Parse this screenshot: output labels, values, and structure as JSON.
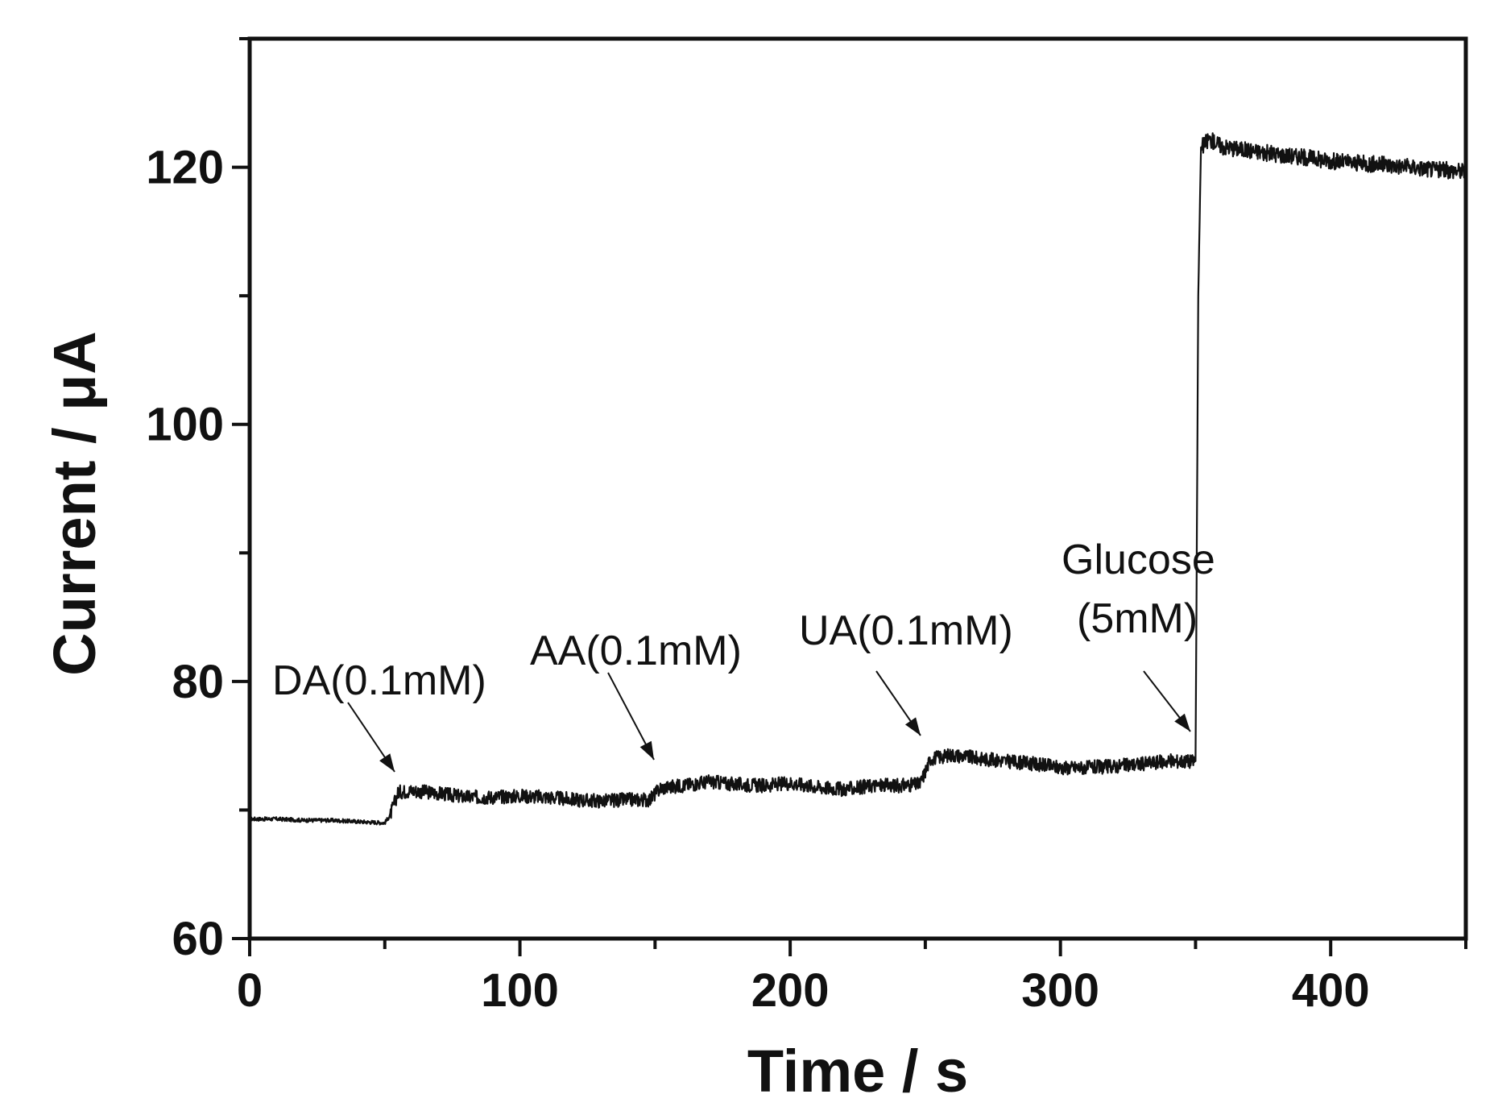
{
  "chart_data": {
    "type": "line",
    "xlabel": "Time / s",
    "ylabel": "Current / μA",
    "xlim": [
      0,
      450
    ],
    "ylim": [
      60,
      130
    ],
    "xticks": [
      0,
      100,
      200,
      300,
      400
    ],
    "yticks": [
      60,
      80,
      100,
      120
    ],
    "grid": false,
    "legend": "none",
    "line_color": "#111111",
    "series": [
      {
        "x": [
          0,
          10,
          20,
          30,
          40,
          50,
          52,
          55,
          60,
          70,
          80,
          90,
          100,
          110,
          120,
          130,
          140,
          148,
          152,
          160,
          170,
          180,
          190,
          200,
          210,
          220,
          230,
          240,
          248,
          252,
          260,
          270,
          280,
          290,
          300,
          310,
          320,
          330,
          340,
          350,
          351,
          352,
          355,
          360,
          370,
          380,
          390,
          400,
          410,
          420,
          430,
          440,
          450
        ],
        "values": [
          69.3,
          69.3,
          69.2,
          69.2,
          69.1,
          69.0,
          69.6,
          71.4,
          71.5,
          71.3,
          71.0,
          71.0,
          71.1,
          71.0,
          70.8,
          70.7,
          70.8,
          70.8,
          71.7,
          71.9,
          72.2,
          72.0,
          71.9,
          72.1,
          71.8,
          71.6,
          71.9,
          71.9,
          72.0,
          74.0,
          74.3,
          74.0,
          73.8,
          73.6,
          73.3,
          73.3,
          73.4,
          73.6,
          73.8,
          73.8,
          110.0,
          121.5,
          122.2,
          121.6,
          121.3,
          121.0,
          120.8,
          120.5,
          120.3,
          120.2,
          120.0,
          119.8,
          119.7
        ]
      }
    ],
    "annotations": [
      {
        "text": "DA(0.1mM)",
        "x": 52,
        "y": 72.0
      },
      {
        "text": "AA(0.1mM)",
        "x": 150,
        "y": 72.4
      },
      {
        "text": "UA(0.1mM)",
        "x": 250,
        "y": 74.6
      },
      {
        "text": "Glucose",
        "text2": "(5mM)",
        "x": 350,
        "y": 75.0
      }
    ]
  }
}
